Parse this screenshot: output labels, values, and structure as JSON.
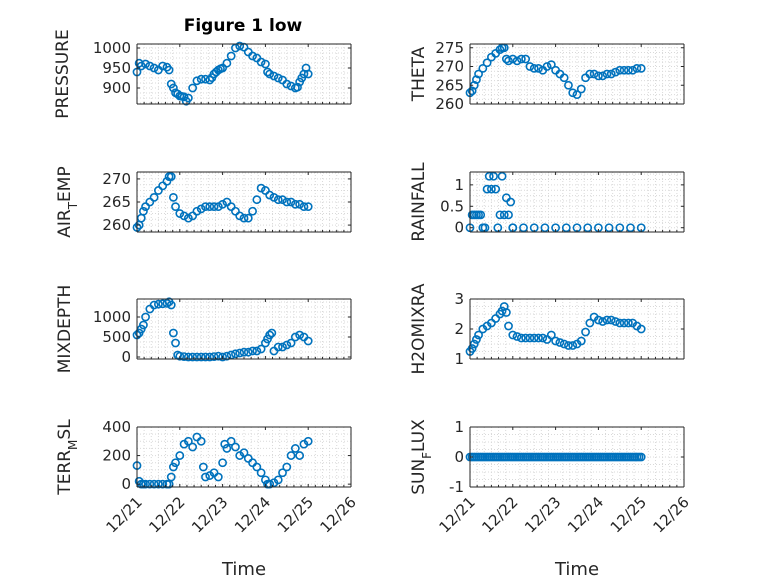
{
  "figure_title": "Figure 1 low",
  "colors": {
    "marker": "#0072BD",
    "axis": "#262626",
    "grid": "#d9d9d9"
  },
  "chart_data": [
    {
      "type": "scatter",
      "ylabel": "PRESSURE",
      "title": "Figure 1 low",
      "xlabel": "",
      "ylim": [
        860,
        1010
      ],
      "yticks": [
        900,
        950,
        1000
      ],
      "xlim": [
        "12/21",
        "12/26"
      ],
      "xticks": [
        "12/21",
        "12/22",
        "12/23",
        "12/24",
        "12/25",
        "12/26"
      ],
      "grid": "minor-dotted",
      "x": [
        0.0,
        0.05,
        0.1,
        0.2,
        0.3,
        0.4,
        0.5,
        0.6,
        0.7,
        0.75,
        0.8,
        0.85,
        0.9,
        0.95,
        1.0,
        1.05,
        1.1,
        1.15,
        1.2,
        1.3,
        1.4,
        1.5,
        1.6,
        1.7,
        1.75,
        1.8,
        1.85,
        1.9,
        1.95,
        2.0,
        2.1,
        2.2,
        2.3,
        2.4,
        2.5,
        2.6,
        2.7,
        2.8,
        2.9,
        3.0,
        3.05,
        3.1,
        3.2,
        3.3,
        3.4,
        3.5,
        3.6,
        3.7,
        3.75,
        3.8,
        3.85,
        3.9,
        3.95,
        4.0
      ],
      "y": [
        940,
        962,
        955,
        960,
        955,
        950,
        945,
        955,
        952,
        945,
        910,
        900,
        888,
        885,
        880,
        879,
        878,
        867,
        875,
        900,
        918,
        922,
        922,
        920,
        926,
        935,
        940,
        945,
        948,
        950,
        962,
        980,
        1000,
        1005,
        1002,
        990,
        980,
        975,
        965,
        960,
        940,
        935,
        930,
        925,
        920,
        910,
        905,
        900,
        902,
        915,
        925,
        935,
        950,
        935
      ]
    },
    {
      "type": "scatter",
      "ylabel": "THETA",
      "xlabel": "",
      "ylim": [
        260,
        276
      ],
      "yticks": [
        260,
        265,
        270,
        275
      ],
      "xlim": [
        "12/21",
        "12/26"
      ],
      "xticks": [
        "12/21",
        "12/22",
        "12/23",
        "12/24",
        "12/25",
        "12/26"
      ],
      "grid": "minor-dotted",
      "x": [
        0.0,
        0.05,
        0.1,
        0.15,
        0.2,
        0.3,
        0.4,
        0.5,
        0.6,
        0.7,
        0.75,
        0.8,
        0.85,
        0.9,
        1.0,
        1.1,
        1.2,
        1.3,
        1.4,
        1.5,
        1.6,
        1.7,
        1.8,
        1.9,
        2.0,
        2.1,
        2.2,
        2.3,
        2.4,
        2.5,
        2.6,
        2.7,
        2.8,
        2.9,
        3.0,
        3.1,
        3.2,
        3.3,
        3.4,
        3.5,
        3.6,
        3.7,
        3.8,
        3.9,
        4.0
      ],
      "y": [
        263,
        263.5,
        265,
        266.5,
        268,
        269.5,
        271,
        272.5,
        273.5,
        274.5,
        275,
        275,
        272,
        271.5,
        272,
        271.5,
        272,
        272,
        270,
        269.5,
        269.5,
        269,
        270,
        270.5,
        269,
        268,
        267,
        265,
        263,
        262.5,
        264,
        267,
        268,
        268,
        267.5,
        267.5,
        268,
        268,
        268.5,
        269,
        269,
        269,
        269,
        269.5,
        269.5
      ]
    },
    {
      "type": "scatter",
      "ylabel": "AIR_TEMP",
      "xlabel": "",
      "ylim": [
        258.5,
        271.5
      ],
      "yticks": [
        260,
        265,
        270
      ],
      "xlim": [
        "12/21",
        "12/26"
      ],
      "xticks": [
        "12/21",
        "12/22",
        "12/23",
        "12/24",
        "12/25",
        "12/26"
      ],
      "grid": "minor-dotted",
      "x": [
        0.0,
        0.05,
        0.1,
        0.15,
        0.2,
        0.3,
        0.4,
        0.5,
        0.6,
        0.7,
        0.75,
        0.8,
        0.85,
        0.9,
        1.0,
        1.1,
        1.2,
        1.3,
        1.4,
        1.5,
        1.6,
        1.7,
        1.8,
        1.9,
        2.0,
        2.1,
        2.2,
        2.3,
        2.4,
        2.5,
        2.6,
        2.7,
        2.8,
        2.9,
        3.0,
        3.1,
        3.2,
        3.3,
        3.4,
        3.5,
        3.6,
        3.7,
        3.8,
        3.9,
        4.0
      ],
      "y": [
        259.5,
        260,
        261.5,
        263,
        264,
        265,
        266,
        267.5,
        268.5,
        269.5,
        270.5,
        270.5,
        266,
        264,
        262.5,
        262,
        261.5,
        262,
        263,
        263.5,
        264,
        264,
        264,
        264,
        264.5,
        265,
        264,
        263,
        262,
        261.5,
        261.5,
        263,
        265.5,
        268,
        267.5,
        266.5,
        266,
        265.5,
        265.5,
        265,
        265,
        264.5,
        264.5,
        264,
        264
      ]
    },
    {
      "type": "scatter",
      "ylabel": "RAINFALL",
      "xlabel": "",
      "ylim": [
        -0.1,
        1.3
      ],
      "yticks": [
        0,
        0.5,
        1
      ],
      "xlim": [
        "12/21",
        "12/26"
      ],
      "xticks": [
        "12/21",
        "12/22",
        "12/23",
        "12/24",
        "12/25",
        "12/26"
      ],
      "grid": "minor-dotted",
      "x": [
        0.0,
        0.05,
        0.1,
        0.15,
        0.2,
        0.25,
        0.3,
        0.35,
        0.4,
        0.45,
        0.5,
        0.55,
        0.6,
        0.65,
        0.7,
        0.75,
        0.8,
        0.85,
        0.9,
        0.95,
        1.0,
        1.0,
        1.25,
        1.5,
        1.75,
        2.0,
        2.25,
        2.5,
        2.75,
        3.0,
        3.25,
        3.5,
        3.75,
        4.0
      ],
      "y": [
        0.0,
        0.3,
        0.3,
        0.3,
        0.3,
        0.3,
        0.0,
        0.0,
        0.9,
        1.2,
        0.9,
        1.2,
        0.9,
        0.0,
        0.3,
        1.2,
        0.3,
        0.7,
        0.3,
        0.6,
        0.0,
        0.0,
        0.0,
        0.0,
        0.0,
        0.0,
        0.0,
        0.0,
        0.0,
        0.0,
        0.0,
        0.0,
        0.0,
        0.0
      ]
    },
    {
      "type": "scatter",
      "ylabel": "MIXDEPTH",
      "xlabel": "",
      "ylim": [
        -50,
        1450
      ],
      "yticks": [
        0,
        500,
        1000
      ],
      "xlim": [
        "12/21",
        "12/26"
      ],
      "xticks": [
        "12/21",
        "12/22",
        "12/23",
        "12/24",
        "12/25",
        "12/26"
      ],
      "grid": "minor-dotted",
      "x": [
        0.0,
        0.05,
        0.1,
        0.15,
        0.2,
        0.3,
        0.4,
        0.5,
        0.6,
        0.7,
        0.75,
        0.8,
        0.85,
        0.9,
        0.95,
        1.0,
        1.1,
        1.2,
        1.3,
        1.4,
        1.5,
        1.6,
        1.7,
        1.8,
        1.9,
        2.0,
        2.1,
        2.2,
        2.3,
        2.4,
        2.5,
        2.6,
        2.7,
        2.8,
        2.9,
        3.0,
        3.05,
        3.1,
        3.15,
        3.2,
        3.3,
        3.4,
        3.5,
        3.6,
        3.7,
        3.8,
        3.9,
        4.0
      ],
      "y": [
        550,
        600,
        700,
        800,
        1000,
        1200,
        1300,
        1320,
        1330,
        1340,
        1380,
        1300,
        600,
        350,
        50,
        20,
        10,
        0,
        0,
        0,
        0,
        0,
        0,
        10,
        20,
        0,
        20,
        50,
        80,
        100,
        120,
        120,
        150,
        150,
        200,
        350,
        450,
        550,
        600,
        150,
        250,
        250,
        300,
        350,
        500,
        550,
        500,
        400
      ]
    },
    {
      "type": "scatter",
      "ylabel": "H2OMIXRA",
      "xlabel": "",
      "ylim": [
        1,
        3
      ],
      "yticks": [
        1,
        2,
        3
      ],
      "xlim": [
        "12/21",
        "12/26"
      ],
      "xticks": [
        "12/21",
        "12/22",
        "12/23",
        "12/24",
        "12/25",
        "12/26"
      ],
      "grid": "minor-dotted",
      "x": [
        0.0,
        0.05,
        0.1,
        0.15,
        0.2,
        0.3,
        0.4,
        0.5,
        0.6,
        0.7,
        0.75,
        0.8,
        0.85,
        0.9,
        1.0,
        1.1,
        1.2,
        1.3,
        1.4,
        1.5,
        1.6,
        1.7,
        1.8,
        1.9,
        2.0,
        2.1,
        2.2,
        2.3,
        2.4,
        2.5,
        2.6,
        2.7,
        2.8,
        2.9,
        3.0,
        3.1,
        3.2,
        3.3,
        3.4,
        3.5,
        3.6,
        3.7,
        3.8,
        3.9,
        4.0
      ],
      "y": [
        1.25,
        1.35,
        1.5,
        1.65,
        1.8,
        2.0,
        2.1,
        2.2,
        2.35,
        2.5,
        2.6,
        2.75,
        2.55,
        2.1,
        1.8,
        1.75,
        1.7,
        1.7,
        1.7,
        1.7,
        1.7,
        1.7,
        1.65,
        1.8,
        1.6,
        1.55,
        1.5,
        1.45,
        1.45,
        1.5,
        1.6,
        1.9,
        2.2,
        2.4,
        2.3,
        2.25,
        2.3,
        2.3,
        2.25,
        2.2,
        2.2,
        2.2,
        2.2,
        2.1,
        2.0
      ]
    },
    {
      "type": "scatter",
      "ylabel": "TERR_MSL",
      "xlabel": "Time",
      "ylim": [
        -20,
        400
      ],
      "yticks": [
        0,
        200,
        400
      ],
      "xlim": [
        "12/21",
        "12/26"
      ],
      "xticks": [
        "12/21",
        "12/22",
        "12/23",
        "12/24",
        "12/25",
        "12/26"
      ],
      "grid": "minor-dotted",
      "x": [
        0.0,
        0.05,
        0.1,
        0.15,
        0.2,
        0.3,
        0.4,
        0.5,
        0.6,
        0.7,
        0.75,
        0.8,
        0.85,
        0.9,
        1.0,
        1.1,
        1.2,
        1.3,
        1.4,
        1.5,
        1.55,
        1.6,
        1.7,
        1.8,
        1.9,
        2.0,
        2.05,
        2.1,
        2.2,
        2.3,
        2.4,
        2.5,
        2.6,
        2.7,
        2.8,
        2.9,
        3.0,
        3.05,
        3.1,
        3.2,
        3.3,
        3.4,
        3.5,
        3.6,
        3.7,
        3.8,
        3.9,
        4.0
      ],
      "y": [
        130,
        20,
        0,
        0,
        0,
        0,
        0,
        0,
        0,
        0,
        0,
        50,
        120,
        150,
        200,
        280,
        300,
        260,
        330,
        300,
        120,
        50,
        60,
        80,
        50,
        150,
        280,
        250,
        300,
        260,
        200,
        220,
        180,
        150,
        120,
        80,
        30,
        0,
        0,
        10,
        30,
        80,
        120,
        200,
        250,
        200,
        280,
        300
      ]
    },
    {
      "type": "scatter",
      "ylabel": "SUN_FLUX",
      "xlabel": "Time",
      "ylim": [
        -1,
        1
      ],
      "yticks": [
        -1,
        0,
        1
      ],
      "xlim": [
        "12/21",
        "12/26"
      ],
      "xticks": [
        "12/21",
        "12/22",
        "12/23",
        "12/24",
        "12/25",
        "12/26"
      ],
      "grid": "minor-dotted",
      "x": [
        0.0,
        0.05,
        0.1,
        0.15,
        0.2,
        0.25,
        0.3,
        0.35,
        0.4,
        0.45,
        0.5,
        0.55,
        0.6,
        0.65,
        0.7,
        0.75,
        0.8,
        0.85,
        0.9,
        0.95,
        1.0,
        1.05,
        1.1,
        1.15,
        1.2,
        1.25,
        1.3,
        1.35,
        1.4,
        1.45,
        1.5,
        1.55,
        1.6,
        1.65,
        1.7,
        1.75,
        1.8,
        1.85,
        1.9,
        1.95,
        2.0,
        2.05,
        2.1,
        2.15,
        2.2,
        2.25,
        2.3,
        2.35,
        2.4,
        2.45,
        2.5,
        2.55,
        2.6,
        2.65,
        2.7,
        2.75,
        2.8,
        2.85,
        2.9,
        2.95,
        3.0,
        3.05,
        3.1,
        3.15,
        3.2,
        3.25,
        3.3,
        3.35,
        3.4,
        3.45,
        3.5,
        3.55,
        3.6,
        3.65,
        3.7,
        3.75,
        3.8,
        3.85,
        3.9,
        3.95,
        4.0
      ],
      "y": [
        0,
        0,
        0,
        0,
        0,
        0,
        0,
        0,
        0,
        0,
        0,
        0,
        0,
        0,
        0,
        0,
        0,
        0,
        0,
        0,
        0,
        0,
        0,
        0,
        0,
        0,
        0,
        0,
        0,
        0,
        0,
        0,
        0,
        0,
        0,
        0,
        0,
        0,
        0,
        0,
        0,
        0,
        0,
        0,
        0,
        0,
        0,
        0,
        0,
        0,
        0,
        0,
        0,
        0,
        0,
        0,
        0,
        0,
        0,
        0,
        0,
        0,
        0,
        0,
        0,
        0,
        0,
        0,
        0,
        0,
        0,
        0,
        0,
        0,
        0,
        0,
        0,
        0,
        0,
        0,
        0
      ]
    }
  ]
}
